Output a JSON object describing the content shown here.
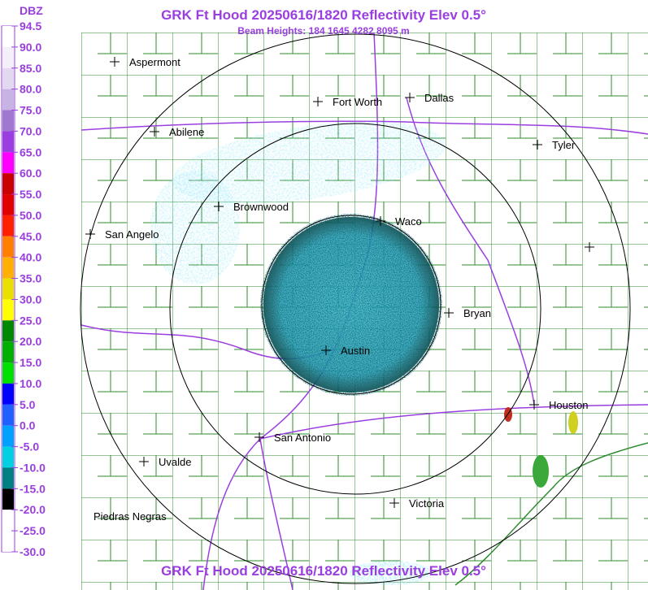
{
  "header": {
    "title": "GRK Ft Hood 20250616/1820 Reflectivity Elev 0.5°",
    "subtitle": "Beam Heights: 184 1645 4282 8095 m",
    "footer": "GRK Ft Hood 20250616/1820 Reflectivity Elev 0.5°"
  },
  "colorbar": {
    "unit": "DBZ",
    "labels": [
      "94.5",
      "90.0",
      "85.0",
      "80.0",
      "75.0",
      "70.0",
      "65.0",
      "60.0",
      "55.0",
      "50.0",
      "45.0",
      "40.0",
      "35.0",
      "30.0",
      "25.0",
      "20.0",
      "15.0",
      "10.0",
      "5.0",
      "0.0",
      "-5.0",
      "-10.0",
      "-15.0",
      "-20.0",
      "-25.0",
      "-30.0"
    ]
  },
  "cities": [
    {
      "name": "Aspermont"
    },
    {
      "name": "Fort Worth"
    },
    {
      "name": "Dallas"
    },
    {
      "name": "Abilene"
    },
    {
      "name": "Tyler"
    },
    {
      "name": "Brownwood"
    },
    {
      "name": "San Angelo"
    },
    {
      "name": "Waco"
    },
    {
      "name": "Bryan"
    },
    {
      "name": "Austin"
    },
    {
      "name": "Houston"
    },
    {
      "name": "San Antonio"
    },
    {
      "name": "Uvalde"
    },
    {
      "name": "Piedras Negras"
    },
    {
      "name": "Victoria"
    }
  ]
}
